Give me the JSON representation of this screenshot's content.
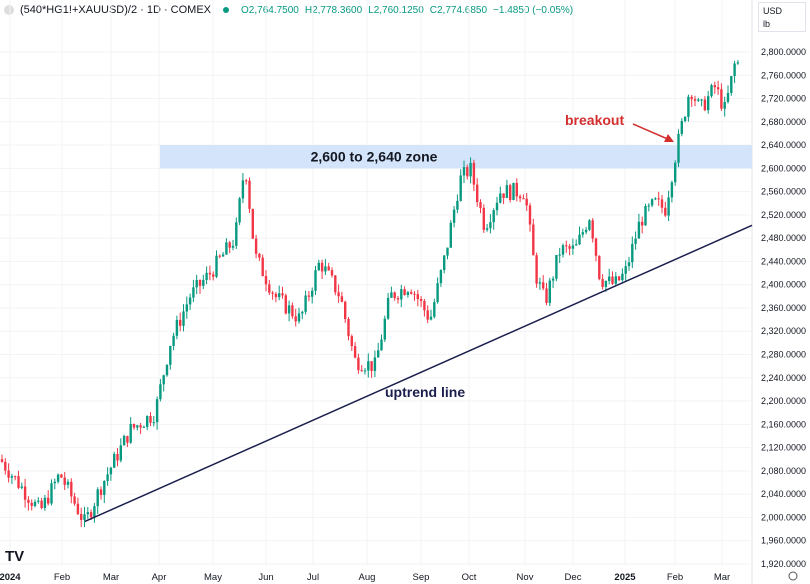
{
  "header": {
    "symbol": "(540*HG1!+XAUUSD)/2 · 1D · COMEX",
    "open": "O2,764.7500",
    "high": "H2,778.3600",
    "low": "L2,760.1250",
    "close": "C2,774.6850",
    "change": "−1.4850 (−0.05%)"
  },
  "currency": {
    "unit": "USD",
    "sub": "lb"
  },
  "chart_data": {
    "type": "candlestick",
    "title": "(540*HG1!+XAUUSD)/2 · 1D · COMEX",
    "ylim": [
      1900,
      2820
    ],
    "y_ticks": [
      "2,800.0000",
      "2,760.0000",
      "2,720.0000",
      "2,680.0000",
      "2,640.0000",
      "2,600.0000",
      "2,560.0000",
      "2,520.0000",
      "2,480.0000",
      "2,440.0000",
      "2,400.0000",
      "2,360.0000",
      "2,320.0000",
      "2,280.0000",
      "2,240.0000",
      "2,200.0000",
      "2,160.0000",
      "2,120.0000",
      "2,080.0000",
      "2,040.0000",
      "2,000.0000",
      "1,960.0000",
      "1,920.0000"
    ],
    "x_ticks": [
      "2024",
      "Feb",
      "Mar",
      "Apr",
      "May",
      "Jun",
      "Jul",
      "Aug",
      "Sep",
      "Oct",
      "Nov",
      "Dec",
      "2025",
      "Feb",
      "Mar"
    ],
    "x_unit": "months since Jan 2024",
    "close_path": [
      [
        -0.19,
        2100
      ],
      [
        0.58,
        2010
      ],
      [
        0.96,
        2075
      ],
      [
        1.44,
        1990
      ],
      [
        1.73,
        2050
      ],
      [
        2.31,
        2150
      ],
      [
        2.79,
        2180
      ],
      [
        3.08,
        2300
      ],
      [
        3.46,
        2380
      ],
      [
        3.85,
        2420
      ],
      [
        4.33,
        2480
      ],
      [
        4.52,
        2610
      ],
      [
        4.71,
        2450
      ],
      [
        5.1,
        2380
      ],
      [
        5.58,
        2340
      ],
      [
        5.96,
        2440
      ],
      [
        6.35,
        2380
      ],
      [
        6.63,
        2270
      ],
      [
        7.02,
        2260
      ],
      [
        7.31,
        2380
      ],
      [
        7.69,
        2400
      ],
      [
        8.08,
        2340
      ],
      [
        8.37,
        2450
      ],
      [
        8.65,
        2580
      ],
      [
        8.85,
        2600
      ],
      [
        9.13,
        2500
      ],
      [
        9.42,
        2560
      ],
      [
        9.9,
        2560
      ],
      [
        10.1,
        2420
      ],
      [
        10.29,
        2370
      ],
      [
        10.58,
        2460
      ],
      [
        10.87,
        2460
      ],
      [
        11.15,
        2520
      ],
      [
        11.35,
        2410
      ],
      [
        11.63,
        2400
      ],
      [
        11.83,
        2420
      ],
      [
        12.12,
        2510
      ],
      [
        12.4,
        2540
      ],
      [
        12.6,
        2530
      ],
      [
        12.79,
        2620
      ],
      [
        13.08,
        2740
      ],
      [
        13.27,
        2700
      ],
      [
        13.56,
        2740
      ],
      [
        13.75,
        2700
      ],
      [
        13.94,
        2780
      ]
    ],
    "annotations": {
      "zone_label": "2,600 to 2,640 zone",
      "zone": [
        2600,
        2640
      ],
      "breakout_label": "breakout",
      "trend_label": "uptrend line",
      "trend_line": [
        [
          1.44,
          1993
        ],
        [
          14.27,
          2502
        ]
      ]
    }
  }
}
